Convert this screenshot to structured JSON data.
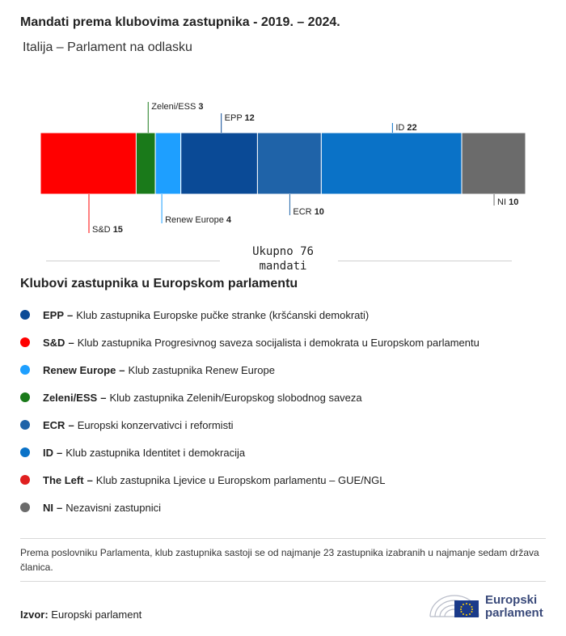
{
  "title": "Mandati prema klubovima zastupnika - 2019. – 2024.",
  "subtitle": "Italija – Parlament na odlasku",
  "chart_data": {
    "type": "bar",
    "orientation": "horizontal-stacked",
    "categories": [
      "S&D",
      "Zeleni/ESS",
      "Renew Europe",
      "EPP",
      "ECR",
      "ID",
      "NI"
    ],
    "values": [
      15,
      3,
      4,
      12,
      10,
      22,
      10
    ],
    "colors": [
      "#ff0000",
      "#1a7a1a",
      "#1e9fff",
      "#0a4a96",
      "#1f63a8",
      "#0a72c7",
      "#6b6b6b"
    ],
    "label_side": [
      "below",
      "above",
      "below",
      "above",
      "below",
      "above",
      "below"
    ],
    "total": 76
  },
  "total_label": {
    "line1": "Ukupno 76",
    "line2": "mandati"
  },
  "legend": {
    "title": "Klubovi zastupnika u Europskom parlamentu",
    "items": [
      {
        "name": "EPP",
        "desc": "Klub zastupnika Europske pučke stranke (kršćanski demokrati)",
        "color": "#0a4a96"
      },
      {
        "name": "S&D",
        "desc": "Klub zastupnika Progresivnog saveza socijalista i demokrata u Europskom parlamentu",
        "color": "#ff0000"
      },
      {
        "name": "Renew Europe",
        "desc": "Klub zastupnika Renew Europe",
        "color": "#1e9fff"
      },
      {
        "name": "Zeleni/ESS",
        "desc": "Klub zastupnika Zelenih/Europskog slobodnog saveza",
        "color": "#1a7a1a"
      },
      {
        "name": "ECR",
        "desc": "Europski konzervativci i reformisti",
        "color": "#1f63a8"
      },
      {
        "name": "ID",
        "desc": "Klub zastupnika Identitet i demokracija",
        "color": "#0a72c7"
      },
      {
        "name": "The Left",
        "desc": "Klub zastupnika Ljevice u Europskom parlamentu – GUE/NGL",
        "color": "#e02020"
      },
      {
        "name": "NI",
        "desc": "Nezavisni zastupnici",
        "color": "#6b6b6b"
      }
    ]
  },
  "note": "Prema poslovniku Parlamenta, klub zastupnika sastoji se od najmanje 23 zastupnika izabranih u najmanje sedam država članica.",
  "source": {
    "label": "Izvor:",
    "value": "Europski parlament"
  },
  "logo": {
    "line1": "Europski",
    "line2": "parlament"
  }
}
